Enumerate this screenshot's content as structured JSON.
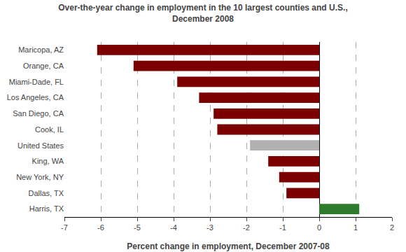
{
  "chart_data": {
    "type": "bar",
    "orientation": "horizontal",
    "title": "Over-the-year change in employment in the 10 largest counties and U.S.,\nDecember 2008",
    "xlabel": "Percent change in employment, December 2007-08",
    "categories": [
      "Harris, TX",
      "Dallas, TX",
      "New York, NY",
      "King, WA",
      "United States",
      "Cook, IL",
      "San Diego, CA",
      "Los Angeles, CA",
      "Miami-Dade, FL",
      "Orange, CA",
      "Maricopa, AZ"
    ],
    "values": [
      1.1,
      -0.9,
      -1.1,
      -1.4,
      -1.9,
      -2.8,
      -2.9,
      -3.3,
      -3.9,
      -5.1,
      -6.1
    ],
    "colors": [
      "#2d7b2d",
      "#7b0000",
      "#7b0000",
      "#7b0000",
      "#b0b0b0",
      "#7b0000",
      "#7b0000",
      "#7b0000",
      "#7b0000",
      "#7b0000",
      "#7b0000"
    ],
    "xlim": [
      -7,
      2
    ],
    "xticks": [
      -7,
      -6,
      -5,
      -4,
      -3,
      -2,
      -1,
      0,
      1,
      2
    ],
    "grid": true
  }
}
